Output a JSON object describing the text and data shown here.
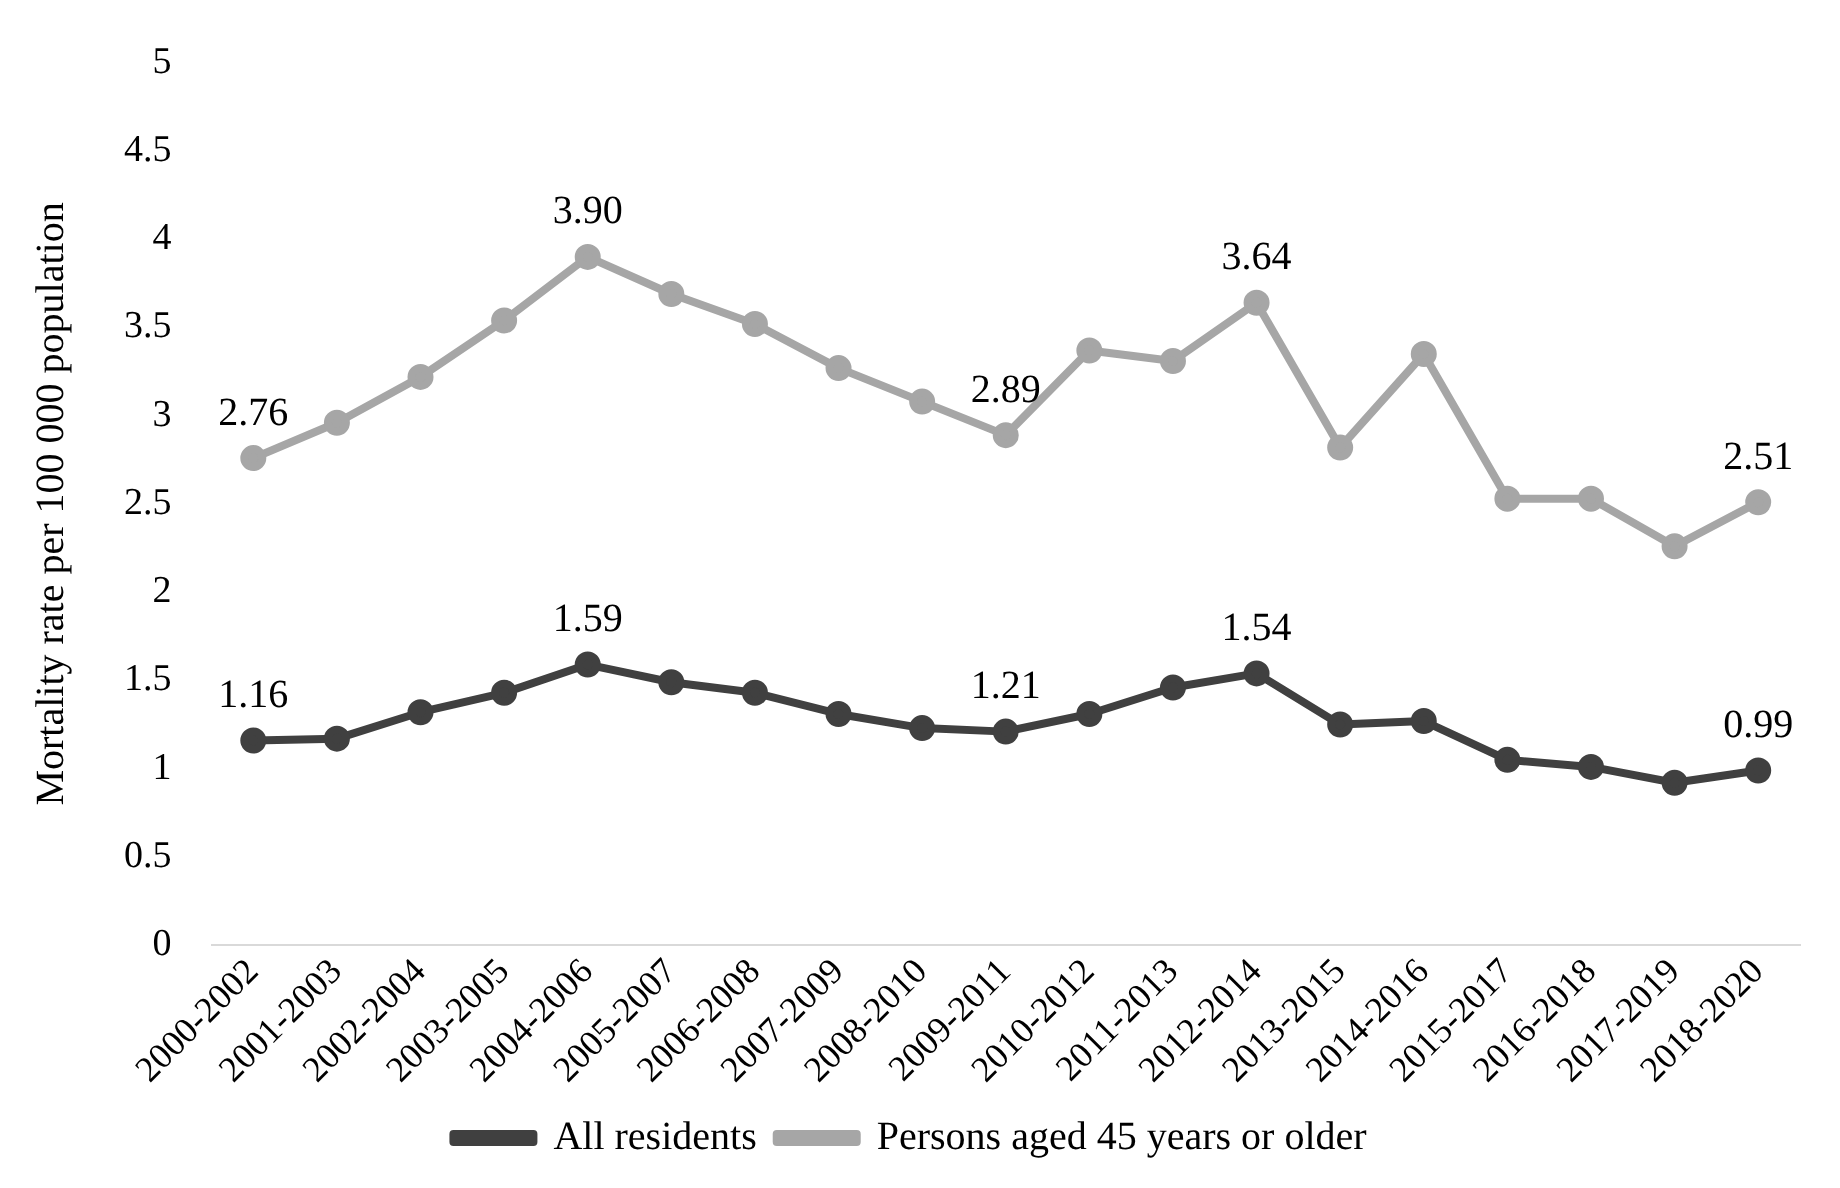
{
  "chart_data": {
    "type": "line",
    "ylabel": "Mortality rate per 100 000 population",
    "categories": [
      "2000-2002",
      "2001-2003",
      "2002-2004",
      "2003-2005",
      "2004-2006",
      "2005-2007",
      "2006-2008",
      "2007-2009",
      "2008-2010",
      "2009-2011",
      "2010-2012",
      "2011-2013",
      "2012-2014",
      "2013-2015",
      "2014-2016",
      "2015-2017",
      "2016-2018",
      "2017-2019",
      "2018-2020"
    ],
    "series": [
      {
        "name": "All residents",
        "color": "#404040",
        "values": [
          1.16,
          1.17,
          1.32,
          1.43,
          1.59,
          1.49,
          1.43,
          1.31,
          1.23,
          1.21,
          1.31,
          1.46,
          1.54,
          1.25,
          1.27,
          1.05,
          1.01,
          0.92,
          0.99
        ],
        "value_labels": [
          "1.16",
          null,
          null,
          null,
          "1.59",
          null,
          null,
          null,
          null,
          "1.21",
          null,
          null,
          "1.54",
          null,
          null,
          null,
          null,
          null,
          "0.99"
        ]
      },
      {
        "name": "Persons aged 45 years or older",
        "color": "#a6a6a6",
        "values": [
          2.76,
          2.96,
          3.22,
          3.54,
          3.9,
          3.69,
          3.52,
          3.27,
          3.08,
          2.89,
          3.37,
          3.31,
          3.64,
          2.82,
          3.35,
          2.53,
          2.53,
          2.26,
          2.51
        ],
        "value_labels": [
          "2.76",
          null,
          null,
          null,
          "3.90",
          null,
          null,
          null,
          null,
          "2.89",
          null,
          null,
          "3.64",
          null,
          null,
          null,
          null,
          null,
          "2.51"
        ]
      }
    ],
    "ylim": [
      0,
      5
    ],
    "yticks": [
      0,
      0.5,
      1,
      1.5,
      2,
      2.5,
      3,
      3.5,
      4,
      4.5,
      5
    ],
    "grid": false,
    "legend": "bottom",
    "marker": "circle",
    "line_style": "solid"
  }
}
